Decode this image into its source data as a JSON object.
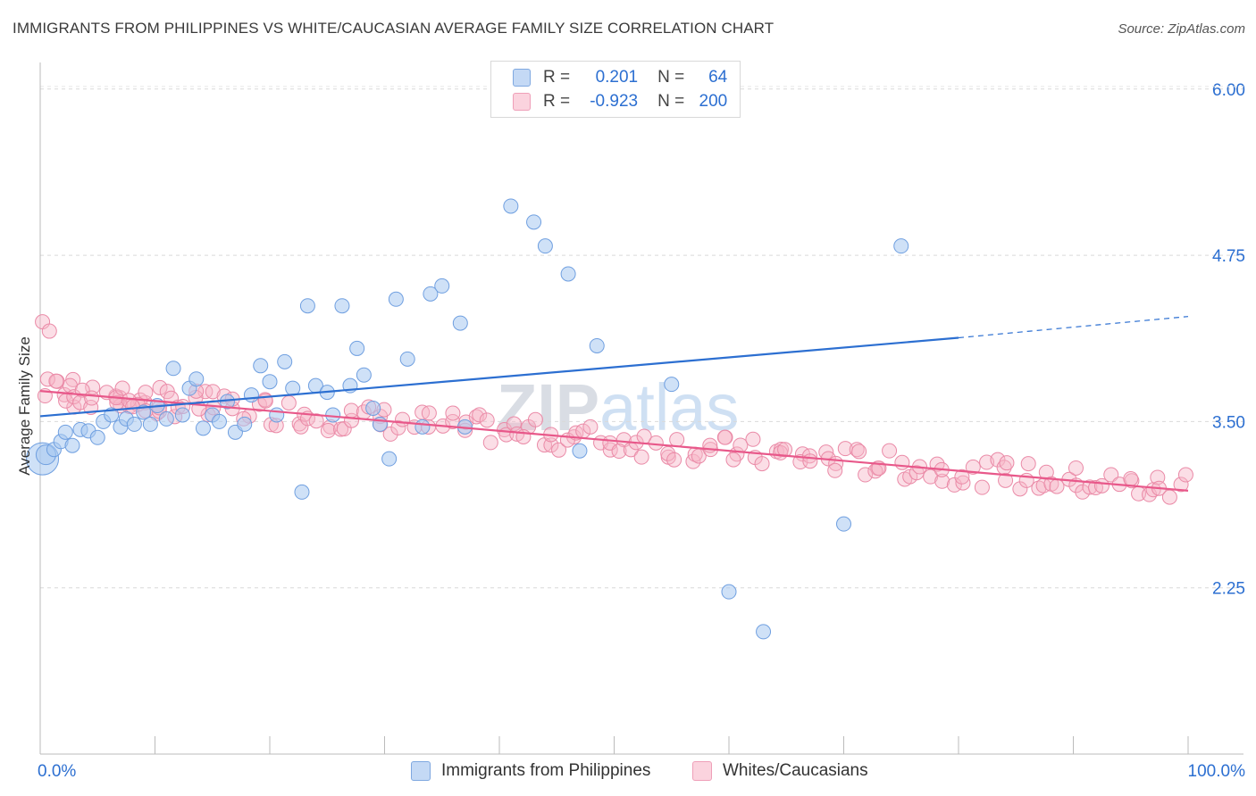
{
  "title": "IMMIGRANTS FROM PHILIPPINES VS WHITE/CAUCASIAN AVERAGE FAMILY SIZE CORRELATION CHART",
  "source": "Source: ZipAtlas.com",
  "watermark": "ZIPatlas",
  "legend": {
    "rows": [
      {
        "r_key": "R =",
        "r_val": "0.201",
        "n_key": "N =",
        "n_val": "64",
        "color": "#a8c8f0"
      },
      {
        "r_key": "R =",
        "r_val": "-0.923",
        "n_key": "N =",
        "n_val": "200",
        "color": "#f7b6c8"
      }
    ]
  },
  "chart_data": {
    "type": "scatter",
    "title": "IMMIGRANTS FROM PHILIPPINES VS WHITE/CAUCASIAN AVERAGE FAMILY SIZE CORRELATION CHART",
    "xlabel": "",
    "ylabel": "Average Family Size",
    "xlim": [
      0,
      100
    ],
    "ylim": [
      1.0,
      6.2
    ],
    "x_tick_labels": [
      "0.0%",
      "100.0%"
    ],
    "y_ticks": [
      2.25,
      3.5,
      4.75,
      6.0
    ],
    "y_tick_labels": [
      "2.25",
      "3.50",
      "4.75",
      "6.00"
    ],
    "grid": "horizontal dashed",
    "series": [
      {
        "name": "Immigrants from Philippines",
        "color": "#a8c8f0",
        "stroke": "#6f9fe0",
        "trend_color": "#2c6fd1",
        "trend": {
          "x0": 0,
          "y0": 3.54,
          "x1": 80,
          "y1": 4.13,
          "dashed_to_x": 100,
          "dashed_to_y": 4.29
        },
        "x": [
          0.2,
          0.5,
          1.2,
          1.8,
          2.2,
          2.8,
          3.5,
          4.2,
          5.0,
          5.5,
          6.2,
          7.0,
          7.5,
          8.2,
          9.0,
          9.6,
          10.2,
          11.0,
          11.6,
          12.4,
          13.0,
          13.6,
          14.2,
          15.0,
          15.6,
          16.3,
          17.0,
          17.8,
          18.4,
          19.2,
          20.0,
          20.6,
          21.3,
          22.0,
          22.8,
          23.3,
          24.0,
          25.0,
          25.5,
          26.3,
          27.0,
          27.6,
          28.2,
          29.0,
          29.6,
          30.4,
          31.0,
          32.0,
          33.3,
          34.0,
          35.0,
          36.6,
          37.0,
          41.0,
          43.0,
          44.0,
          46.0,
          47.0,
          48.5,
          55.0,
          60.0,
          63.0,
          70.0,
          75.0
        ],
        "y": [
          3.22,
          3.25,
          3.29,
          3.35,
          3.42,
          3.32,
          3.44,
          3.43,
          3.38,
          3.5,
          3.55,
          3.46,
          3.52,
          3.48,
          3.57,
          3.48,
          3.62,
          3.52,
          3.9,
          3.55,
          3.75,
          3.82,
          3.45,
          3.55,
          3.5,
          3.65,
          3.42,
          3.48,
          3.7,
          3.92,
          3.8,
          3.55,
          3.95,
          3.75,
          2.97,
          4.37,
          3.77,
          3.72,
          3.55,
          4.37,
          3.77,
          4.05,
          3.85,
          3.6,
          3.48,
          3.22,
          4.42,
          3.97,
          3.46,
          4.46,
          4.52,
          4.24,
          3.46,
          5.12,
          5.0,
          4.82,
          4.61,
          3.28,
          4.07,
          3.78,
          2.22,
          1.92,
          2.73,
          4.82
        ]
      },
      {
        "name": "Whites/Caucasians",
        "color": "#f7b6c8",
        "stroke": "#ea8aa7",
        "trend_color": "#e8588a",
        "trend": {
          "x0": 0,
          "y0": 3.73,
          "x1": 100,
          "y1": 2.98
        },
        "x_range": [
          0,
          100
        ],
        "n": 200
      }
    ]
  },
  "bottom_legend": [
    {
      "label": "Immigrants from Philippines",
      "color": "#a8c8f0"
    },
    {
      "label": "Whites/Caucasians",
      "color": "#f7b6c8"
    }
  ]
}
